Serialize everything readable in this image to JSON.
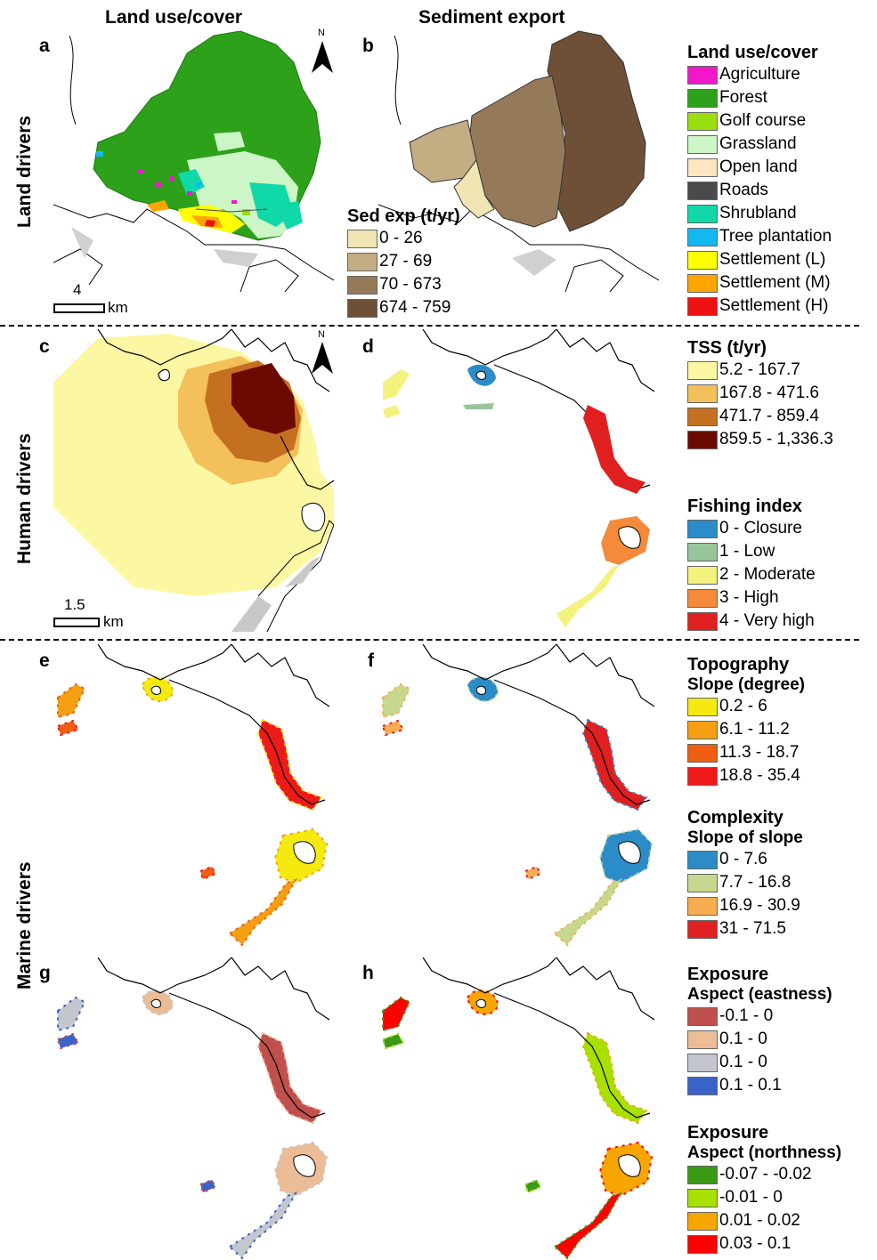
{
  "columns": {
    "left": "Land use/cover",
    "right": "Sediment export"
  },
  "rows": {
    "land": "Land drivers",
    "human": "Human drivers",
    "marine": "Marine drivers"
  },
  "panels": {
    "a": "a",
    "b": "b",
    "c": "c",
    "d": "d",
    "e": "e",
    "f": "f",
    "g": "g",
    "h": "h"
  },
  "north_label": "N",
  "scale_a": {
    "value": "4",
    "unit": "km"
  },
  "scale_c": {
    "value": "1.5",
    "unit": "km"
  },
  "legend_landuse": {
    "title": "Land use/cover",
    "items": [
      {
        "label": "Agriculture",
        "color": "#f018c8"
      },
      {
        "label": "Forest",
        "color": "#2ea11b"
      },
      {
        "label": "Golf course",
        "color": "#9ade10"
      },
      {
        "label": "Grassland",
        "color": "#ccf6c6"
      },
      {
        "label": "Open land",
        "color": "#fde6c0"
      },
      {
        "label": "Roads",
        "color": "#4a4a4a"
      },
      {
        "label": "Shrubland",
        "color": "#10d8a8"
      },
      {
        "label": "Tree plantation",
        "color": "#12b8f0"
      },
      {
        "label": "Settlement (L)",
        "color": "#ffff00"
      },
      {
        "label": "Settlement (M)",
        "color": "#ffa500"
      },
      {
        "label": "Settlement (H)",
        "color": "#ee1111"
      }
    ]
  },
  "legend_sed": {
    "title": "Sed exp (t/yr)",
    "items": [
      {
        "label": "0 - 26",
        "color": "#efe6b4"
      },
      {
        "label": "27 - 69",
        "color": "#c3ad83"
      },
      {
        "label": "70 - 673",
        "color": "#957a5a"
      },
      {
        "label": "674 - 759",
        "color": "#6e5038"
      }
    ]
  },
  "legend_tss": {
    "title": "TSS (t/yr)",
    "items": [
      {
        "label": "5.2 - 167.7",
        "color": "#fbf7a2"
      },
      {
        "label": "167.8 - 471.6",
        "color": "#f3c05c"
      },
      {
        "label": "471.7 - 859.4",
        "color": "#c47021"
      },
      {
        "label": "859.5 - 1,336.3",
        "color": "#6b0a00"
      }
    ]
  },
  "legend_fishing": {
    "title": "Fishing index",
    "items": [
      {
        "label": "0 - Closure",
        "color": "#2b8cc8"
      },
      {
        "label": "1 - Low",
        "color": "#98c49a"
      },
      {
        "label": "2 - Moderate",
        "color": "#f2f27c"
      },
      {
        "label": "3 - High",
        "color": "#f48a3a"
      },
      {
        "label": "4 - Very high",
        "color": "#e02020"
      }
    ]
  },
  "legend_topo": {
    "title": "Topography",
    "subtitle": "Slope (degree)",
    "items": [
      {
        "label": "0.2 - 6",
        "color": "#f4ea10"
      },
      {
        "label": "6.1 - 11.2",
        "color": "#f4a012"
      },
      {
        "label": "11.3 - 18.7",
        "color": "#ee5f12"
      },
      {
        "label": "18.8 - 35.4",
        "color": "#ee1a1a"
      }
    ]
  },
  "legend_complex": {
    "title": "Complexity",
    "subtitle": "Slope of slope",
    "items": [
      {
        "label": "0 - 7.6",
        "color": "#2b8cc8"
      },
      {
        "label": "7.7 - 16.8",
        "color": "#c6d88e"
      },
      {
        "label": "16.9 - 30.9",
        "color": "#f7ad50"
      },
      {
        "label": "31 - 71.5",
        "color": "#e02020"
      }
    ]
  },
  "legend_east": {
    "title": "Exposure",
    "subtitle": "Aspect (eastness)",
    "items": [
      {
        "label": "-0.1 - 0",
        "color": "#c0504d"
      },
      {
        "label": "0.1 - 0",
        "color": "#ebbc96"
      },
      {
        "label": "0.1 - 0",
        "color": "#c3c6cc"
      },
      {
        "label": "0.1 - 0.1",
        "color": "#3a63c8"
      }
    ]
  },
  "legend_north": {
    "title": "Exposure",
    "subtitle": "Aspect (northness)",
    "items": [
      {
        "label": "-0.07 - -0.02",
        "color": "#3a9a16"
      },
      {
        "label": "-0.01 - 0",
        "color": "#a8e000"
      },
      {
        "label": "0.01 - 0.02",
        "color": "#f7a600"
      },
      {
        "label": "0.03 - 0.1",
        "color": "#ff0000"
      }
    ]
  }
}
